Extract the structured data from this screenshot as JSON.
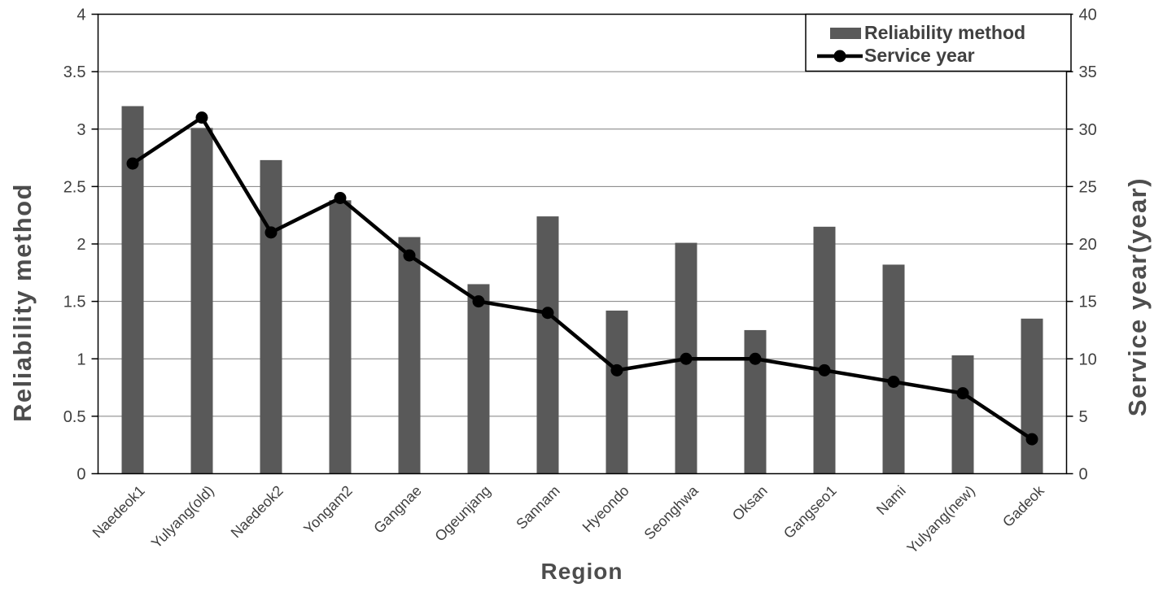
{
  "page": {
    "background": "#ffffff"
  },
  "chart_data": {
    "type": "combo-bar-line",
    "title": "",
    "categories": [
      "Naedeok1",
      "Yulyang(old)",
      "Naedeok2",
      "Yongam2",
      "Gangnae",
      "Ogeunjang",
      "Sannam",
      "Hyeondo",
      "Seonghwa",
      "Oksan",
      "Gangseo1",
      "Nami",
      "Yulyang(new)",
      "Gadeok"
    ],
    "series": [
      {
        "name": "Reliability method",
        "type": "bar",
        "axis": "left",
        "color": "#595959",
        "values": [
          3.2,
          3.01,
          2.73,
          2.38,
          2.06,
          1.65,
          2.24,
          1.42,
          2.01,
          1.25,
          2.15,
          1.82,
          1.03,
          1.35
        ]
      },
      {
        "name": "Service year",
        "type": "line",
        "axis": "right",
        "color": "#000000",
        "values": [
          27,
          31,
          21,
          24,
          19,
          15,
          14,
          9,
          10,
          10,
          9,
          8,
          7,
          3
        ]
      }
    ],
    "x_axis": {
      "label": "Region"
    },
    "left_axis": {
      "label": "Reliability method",
      "min": 0,
      "max": 4,
      "step": 0.5,
      "ticks": [
        "0",
        "0.5",
        "1",
        "1.5",
        "2",
        "2.5",
        "3",
        "3.5",
        "4"
      ]
    },
    "right_axis": {
      "label": "Service year(year)",
      "min": 0,
      "max": 40,
      "step": 5,
      "ticks": [
        "0",
        "5",
        "10",
        "15",
        "20",
        "25",
        "30",
        "35",
        "40"
      ]
    },
    "legend": {
      "position": "top-right-inside",
      "border": true,
      "entries": [
        {
          "label": "Reliability method",
          "swatch": "bar"
        },
        {
          "label": "Service year",
          "swatch": "line-marker"
        }
      ]
    },
    "grid": "horizontal lines every 0.5 left-axis units"
  },
  "colors": {
    "bar": "#595959",
    "line": "#000000",
    "gridline": "#7f7f7f",
    "axis": "#000000",
    "tick_label": "#404040",
    "title": "#4d4d4d",
    "legend_text": "#404040",
    "background": "#ffffff"
  }
}
